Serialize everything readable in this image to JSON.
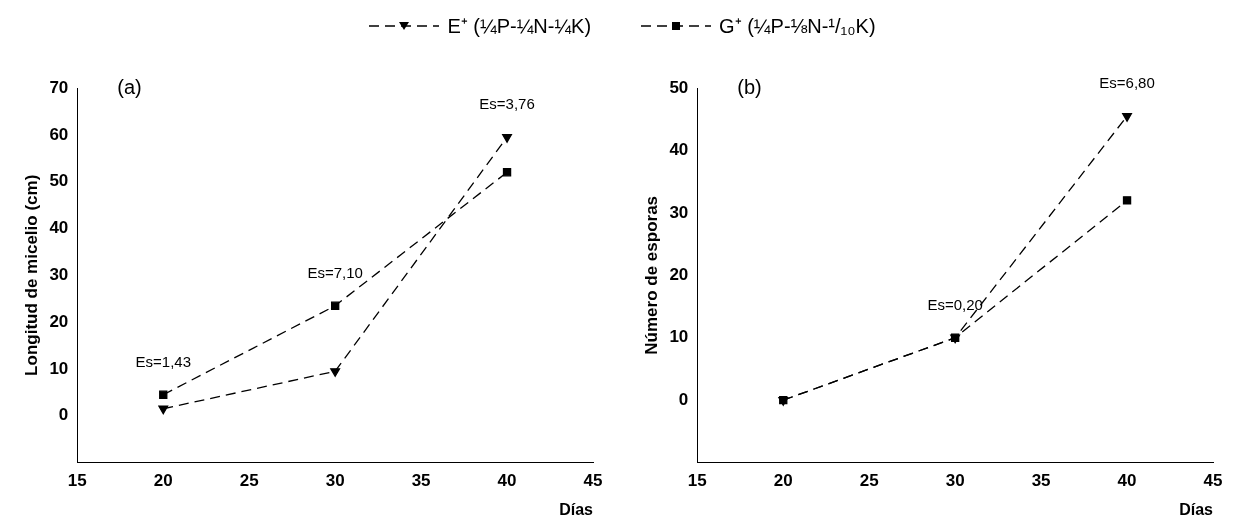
{
  "chart_data": [
    {
      "type": "line",
      "title": "(a)",
      "xlabel": "Días",
      "ylabel": "Longitud de micelio (cm)",
      "x": [
        20,
        30,
        40
      ],
      "series": [
        {
          "name": "E⁺ (¼P-¼N-¼K)",
          "color": "#000000",
          "values": [
            1.5,
            9.5,
            59.5
          ],
          "marker": "triangle",
          "line_style": "dashed"
        },
        {
          "name": "G⁺ (¼P-⅛N-¹/₁₀K)",
          "color": "#000000",
          "values": [
            4.5,
            23.5,
            52
          ],
          "marker": "square",
          "line_style": "dashed"
        }
      ],
      "xlim": [
        15,
        45
      ],
      "xticks": [
        15,
        20,
        25,
        30,
        35,
        40,
        45
      ],
      "ylim": [
        -10,
        70
      ],
      "yticks": [
        0,
        10,
        20,
        30,
        40,
        50,
        60,
        70
      ],
      "grid": false,
      "legend": "top",
      "annotations": [
        "Es=1,43",
        "Es=7,10",
        "Es=3,76"
      ]
    },
    {
      "type": "line",
      "title": "(b)",
      "xlabel": "Días",
      "ylabel": "Número de esporas",
      "x": [
        20,
        30,
        40
      ],
      "series": [
        {
          "color": "#000000",
          "values": [
            0,
            10,
            45.5
          ],
          "marker": "triangle",
          "line_style": "dashed"
        },
        {
          "color": "#000000",
          "values": [
            0,
            10,
            32
          ],
          "marker": "square",
          "line_style": "dashed"
        }
      ],
      "xlim": [
        15,
        45
      ],
      "xticks": [
        15,
        20,
        25,
        30,
        35,
        40,
        45
      ],
      "ylim": [
        -10,
        50
      ],
      "yticks": [
        0,
        10,
        20,
        30,
        40,
        50
      ],
      "grid": false,
      "annotations": [
        "Es=0,20",
        "Es=6,80"
      ]
    }
  ]
}
